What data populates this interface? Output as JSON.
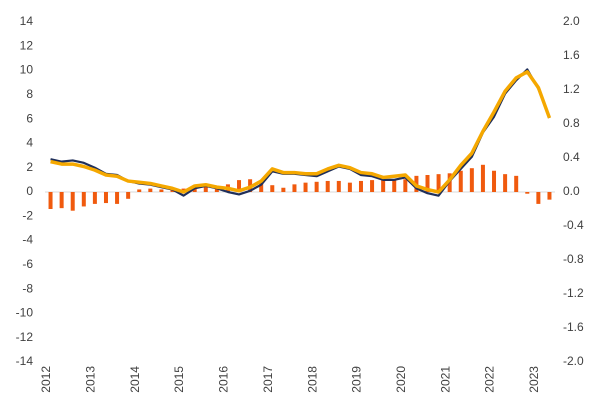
{
  "chart_data": {
    "type": "combo",
    "categories": [
      "2012",
      null,
      null,
      null,
      "2013",
      null,
      null,
      null,
      "2014",
      null,
      null,
      null,
      "2015",
      null,
      null,
      null,
      "2016",
      null,
      null,
      null,
      "2017",
      null,
      null,
      null,
      "2018",
      null,
      null,
      null,
      "2019",
      null,
      null,
      null,
      "2020",
      null,
      null,
      null,
      "2021",
      null,
      null,
      null,
      "2022",
      null,
      null,
      null,
      "2023",
      null
    ],
    "ylim": [
      -14,
      14
    ],
    "yticks": [
      -14,
      -12,
      -10,
      -8,
      -6,
      -4,
      -2,
      0,
      2,
      4,
      6,
      8,
      10,
      12,
      14
    ],
    "y2lim": [
      -2.0,
      2.0
    ],
    "y2ticks": [
      {
        "value": -2,
        "label": "-2.0"
      },
      -1.6,
      -1.2,
      -0.8,
      -0.4,
      {
        "value": 0,
        "label": "0.0"
      },
      0.4,
      0.8,
      1.2,
      1.6,
      {
        "value": 2,
        "label": "2.0"
      }
    ],
    "grid": false,
    "series": [
      {
        "type": "bar",
        "axis": "y2",
        "color": "#f05a0e",
        "values": [
          -0.2,
          -0.19,
          -0.22,
          -0.17,
          -0.14,
          -0.13,
          -0.14,
          -0.08,
          0.03,
          0.04,
          0.03,
          0.03,
          0.04,
          0.07,
          0.07,
          0.06,
          0.09,
          0.14,
          0.15,
          0.12,
          0.08,
          0.05,
          0.09,
          0.11,
          0.12,
          0.13,
          0.13,
          0.11,
          0.13,
          0.14,
          0.14,
          0.14,
          0.15,
          0.19,
          0.2,
          0.21,
          0.22,
          0.25,
          0.28,
          0.32,
          0.25,
          0.21,
          0.19,
          -0.02,
          -0.14,
          -0.09
        ]
      },
      {
        "type": "line",
        "color": "#1f2f5a",
        "values": [
          2.7,
          2.5,
          2.6,
          2.4,
          2.0,
          1.5,
          1.4,
          0.9,
          0.7,
          0.6,
          0.4,
          0.2,
          -0.3,
          0.3,
          0.5,
          0.3,
          0.0,
          -0.2,
          0.1,
          0.6,
          1.7,
          1.5,
          1.5,
          1.4,
          1.3,
          1.7,
          2.1,
          1.9,
          1.4,
          1.3,
          1.0,
          1.0,
          1.2,
          0.3,
          -0.1,
          -0.3,
          0.9,
          1.9,
          2.9,
          4.9,
          6.2,
          8.1,
          9.2,
          10.1,
          8.5,
          6.1
        ]
      },
      {
        "type": "line",
        "color": "#f5a800",
        "values": [
          2.5,
          2.3,
          2.3,
          2.1,
          1.8,
          1.4,
          1.3,
          0.9,
          0.8,
          0.7,
          0.5,
          0.3,
          0.0,
          0.5,
          0.6,
          0.4,
          0.3,
          0.1,
          0.4,
          0.9,
          1.9,
          1.6,
          1.6,
          1.5,
          1.5,
          1.9,
          2.2,
          2.0,
          1.6,
          1.5,
          1.2,
          1.3,
          1.4,
          0.5,
          0.2,
          0.0,
          1.0,
          2.2,
          3.2,
          5.0,
          6.6,
          8.3,
          9.4,
          9.9,
          8.6,
          6.1
        ]
      }
    ]
  }
}
